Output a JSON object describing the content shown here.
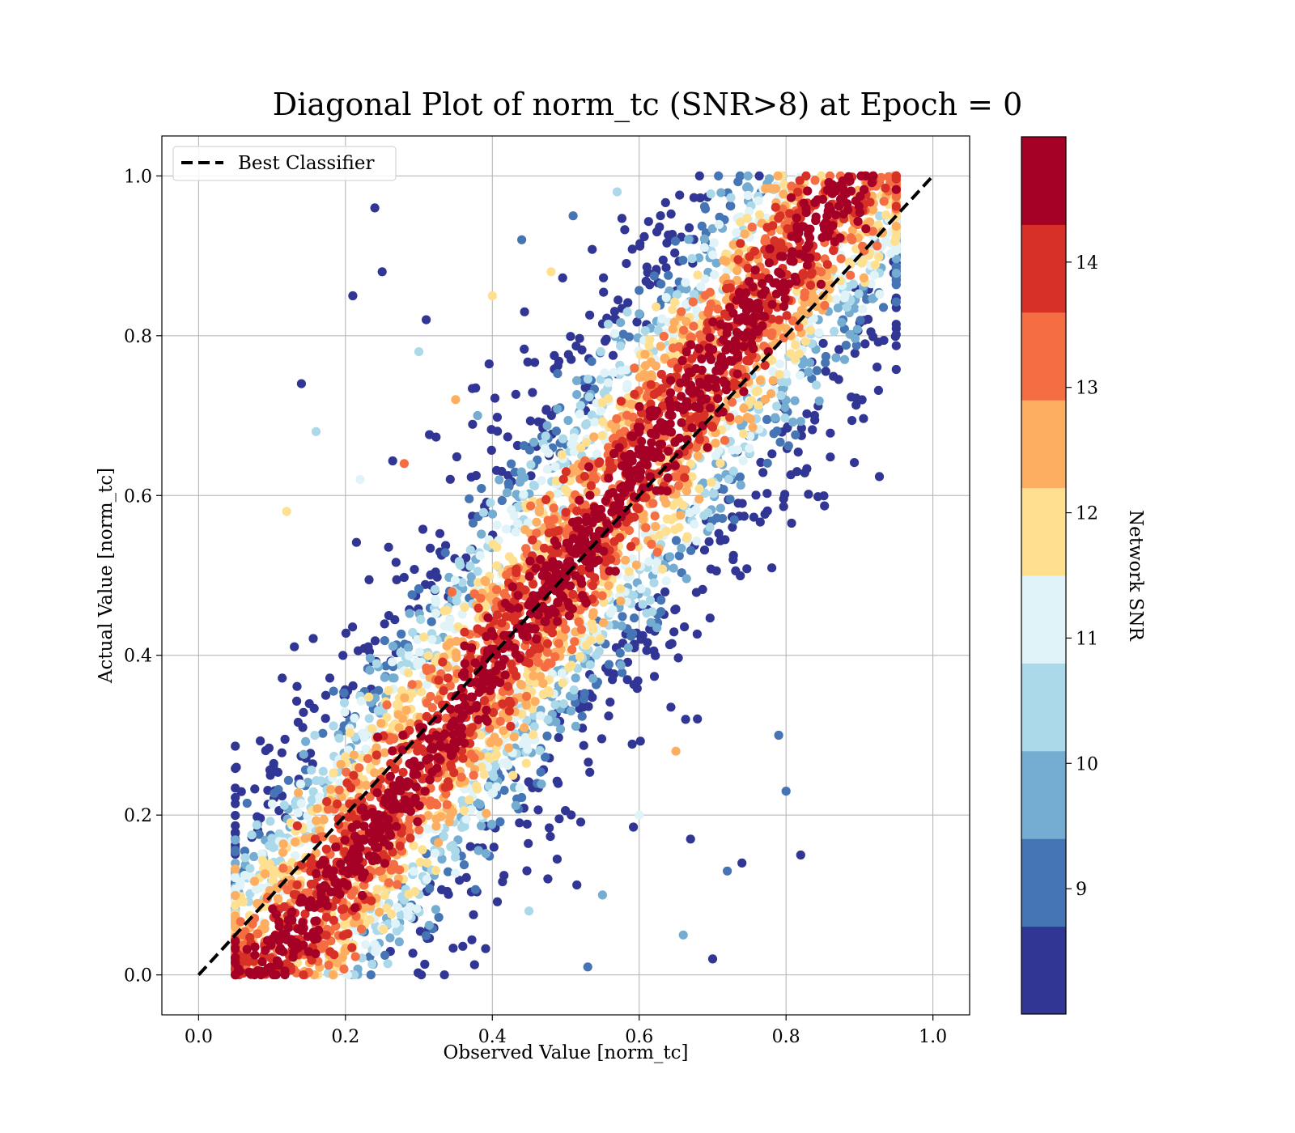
{
  "chart_data": {
    "type": "scatter",
    "title": "Diagonal Plot of norm_tc (SNR>8) at Epoch = 0",
    "xlabel": "Observed Value [norm_tc]",
    "ylabel": "Actual Value [norm_tc]",
    "xlim": [
      -0.05,
      1.05
    ],
    "ylim": [
      -0.05,
      1.05
    ],
    "xticks": [
      "0.0",
      "0.2",
      "0.4",
      "0.6",
      "0.8",
      "1.0"
    ],
    "yticks": [
      "0.0",
      "0.2",
      "0.4",
      "0.6",
      "0.8",
      "1.0"
    ],
    "grid": true,
    "legend": {
      "placement": "top-left",
      "entries": [
        {
          "label": "Best Classifier",
          "style": "black dashed line"
        }
      ]
    },
    "reference_line": {
      "label": "Best Classifier",
      "x": [
        0.0,
        1.0
      ],
      "y": [
        0.0,
        1.0
      ],
      "color": "#000000",
      "dash": true
    },
    "colorbar": {
      "label": "Network SNR",
      "range": [
        8.0,
        15.0
      ],
      "ticks": [
        "9",
        "10",
        "11",
        "12",
        "13",
        "14"
      ],
      "bins": [
        {
          "from": 8.0,
          "to": 8.7,
          "color": "#313695"
        },
        {
          "from": 8.7,
          "to": 9.4,
          "color": "#4575b4"
        },
        {
          "from": 9.4,
          "to": 10.1,
          "color": "#74add1"
        },
        {
          "from": 10.1,
          "to": 10.8,
          "color": "#abd9e9"
        },
        {
          "from": 10.8,
          "to": 11.5,
          "color": "#e0f3f8"
        },
        {
          "from": 11.5,
          "to": 12.2,
          "color": "#fee090"
        },
        {
          "from": 12.2,
          "to": 12.9,
          "color": "#fdae61"
        },
        {
          "from": 12.9,
          "to": 13.6,
          "color": "#f46d43"
        },
        {
          "from": 13.6,
          "to": 14.3,
          "color": "#d73027"
        },
        {
          "from": 14.3,
          "to": 15.0,
          "color": "#a50026"
        }
      ]
    },
    "series": [
      {
        "x": [
          0.31,
          0.14,
          0.21,
          0.24,
          0.25,
          0.44,
          0.51,
          0.57,
          0.67,
          0.72,
          0.74,
          0.7,
          0.79,
          0.8,
          0.82,
          0.66,
          0.53,
          0.45,
          0.38,
          0.3,
          0.22,
          0.16,
          0.12,
          0.4,
          0.6,
          0.35,
          0.55,
          0.65,
          0.48,
          0.28
        ],
        "y": [
          0.82,
          0.74,
          0.85,
          0.96,
          0.88,
          0.92,
          0.95,
          0.98,
          0.17,
          0.13,
          0.14,
          0.02,
          0.3,
          0.23,
          0.15,
          0.05,
          0.01,
          0.08,
          0.7,
          0.78,
          0.62,
          0.68,
          0.58,
          0.85,
          0.2,
          0.72,
          0.1,
          0.28,
          0.88,
          0.64
        ],
        "snr": [
          8.3,
          8.2,
          8.4,
          8.3,
          8.5,
          9.1,
          8.8,
          10.2,
          8.5,
          9.2,
          8.4,
          8.6,
          8.7,
          9.0,
          8.3,
          9.6,
          8.9,
          10.4,
          9.8,
          10.7,
          11.3,
          10.5,
          11.8,
          12.1,
          11.0,
          12.4,
          10.0,
          12.6,
          11.6,
          13.2
        ]
      }
    ],
    "density_band": {
      "description_points": "dense scatter around diagonal, offset upper band to the right and lower band to the left"
    }
  }
}
